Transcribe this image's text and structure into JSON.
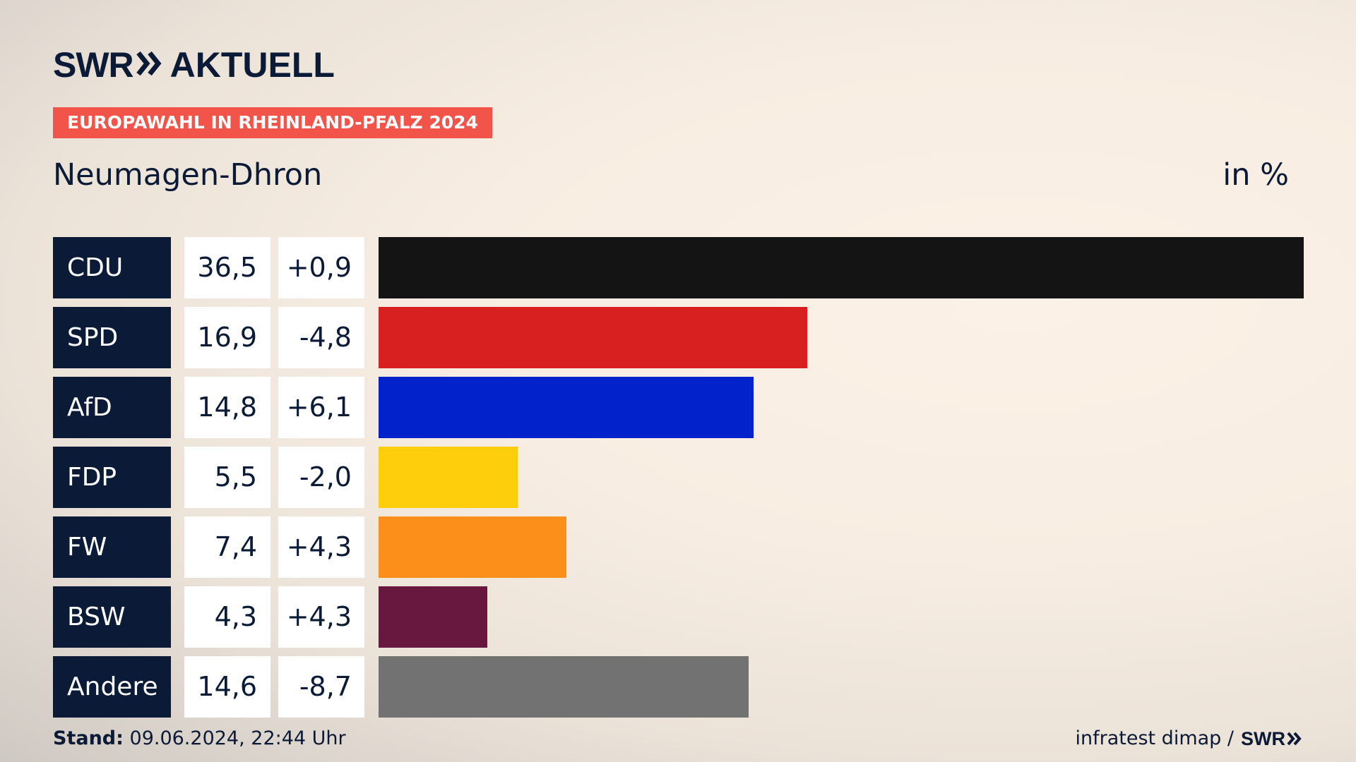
{
  "header": {
    "brand_logo": "SWR",
    "brand_text": "AKTUELL",
    "tag": "EUROPAWAHL IN RHEINLAND-PFALZ 2024",
    "region": "Neumagen-Dhron",
    "unit": "in %"
  },
  "footer": {
    "stand_label": "Stand:",
    "stand_value": "09.06.2024, 22:44 Uhr",
    "source": "infratest dimap /",
    "source_logo": "SWR"
  },
  "chart_data": {
    "type": "bar",
    "orientation": "horizontal",
    "categories": [
      "CDU",
      "SPD",
      "AfD",
      "FDP",
      "FW",
      "BSW",
      "Andere"
    ],
    "values": [
      36.5,
      16.9,
      14.8,
      5.5,
      7.4,
      4.3,
      14.6
    ],
    "value_labels": [
      "36,5",
      "16,9",
      "14,8",
      "5,5",
      "7,4",
      "4,3",
      "14,6"
    ],
    "change_labels": [
      "+0,9",
      "-4,8",
      "+6,1",
      "-2,0",
      "+4,3",
      "+4,3",
      "-8,7"
    ],
    "colors": [
      "#141414",
      "#d82020",
      "#0223cc",
      "#fecd0b",
      "#fc8e1a",
      "#68183e",
      "#727272"
    ],
    "unit": "in %"
  }
}
